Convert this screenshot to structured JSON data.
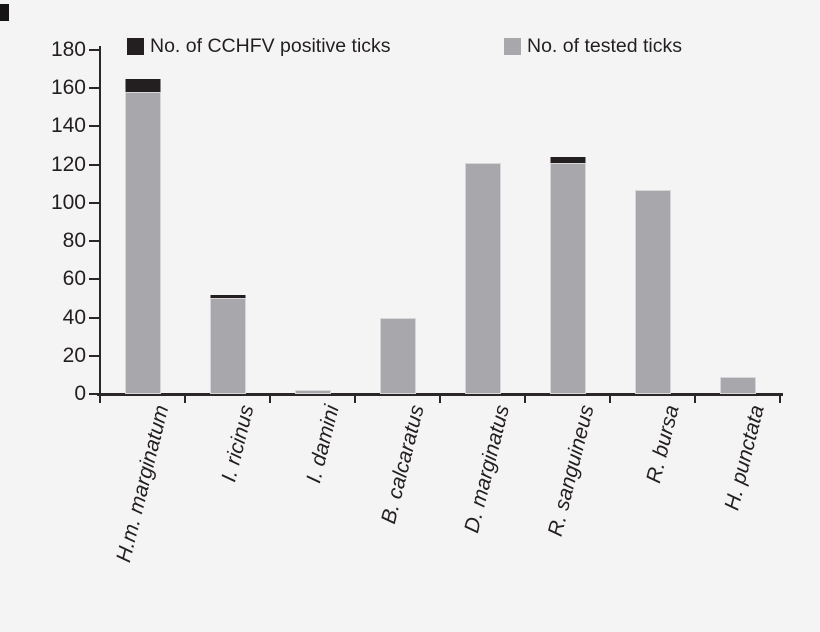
{
  "figure": {
    "legend": [
      {
        "label": "No. of CCHFV positive ticks",
        "series_key": "positive"
      },
      {
        "label": "No. of tested ticks",
        "series_key": "tested"
      }
    ]
  },
  "colors": {
    "positive": "#231f20",
    "tested": "#a8a8ac",
    "axis": "#2b2728",
    "background": "#f5f4f4",
    "text": "#231f20"
  },
  "chart_data": {
    "type": "bar",
    "stacked": true,
    "title": "",
    "xlabel": "",
    "ylabel": "",
    "categories": [
      "H.m. marginatum",
      "I. ricinus",
      "I. damini",
      "B. calcaratus",
      "D. marginatus",
      "R. sanguineus",
      "R. bursa",
      "H. punctata"
    ],
    "series": [
      {
        "name": "No. of tested ticks",
        "color": "#a8a8ac",
        "values": [
          158,
          50,
          2,
          40,
          121,
          121,
          107,
          9
        ]
      },
      {
        "name": "No. of CCHFV positive ticks",
        "color": "#231f20",
        "values": [
          7,
          2,
          0,
          0,
          0,
          3,
          0,
          0
        ]
      }
    ],
    "ylim": [
      0,
      180
    ],
    "yticks": [
      0,
      20,
      40,
      60,
      80,
      100,
      120,
      140,
      160,
      180
    ],
    "grid": false,
    "legend_position": "top"
  }
}
